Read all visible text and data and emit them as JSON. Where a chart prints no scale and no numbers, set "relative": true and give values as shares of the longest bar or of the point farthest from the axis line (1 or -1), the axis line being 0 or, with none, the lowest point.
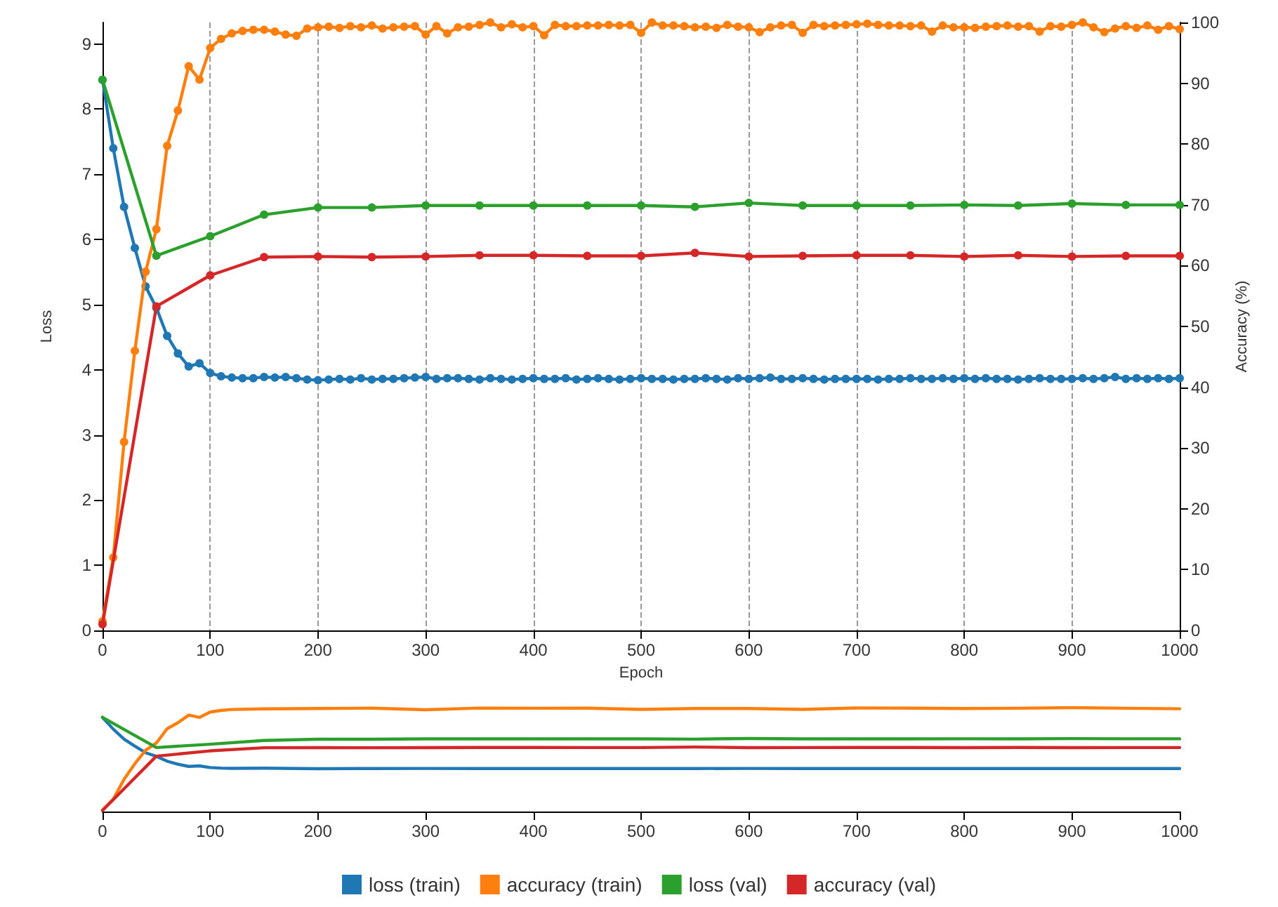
{
  "chart_data": [
    {
      "type": "line",
      "xlabel": "Epoch",
      "ylabel": "Loss",
      "y2label": "Accuracy (%)",
      "xlim": [
        0,
        1000
      ],
      "xticks": [
        0,
        100,
        200,
        300,
        400,
        500,
        600,
        700,
        800,
        900,
        1000
      ],
      "ylim": [
        0,
        9.33
      ],
      "yticks": [
        0,
        1,
        2,
        3,
        4,
        5,
        6,
        7,
        8,
        9
      ],
      "y2lim": [
        0,
        100
      ],
      "y2ticks": [
        0,
        10,
        20,
        30,
        40,
        50,
        60,
        70,
        80,
        90,
        100
      ],
      "grid": "x",
      "legend": "bottom",
      "marker": "circle",
      "line_style": "solid",
      "series": [
        {
          "name": "loss (train)",
          "color": "#1f77b4",
          "x": [
            0,
            10,
            20,
            30,
            40,
            50,
            60,
            70,
            80,
            90,
            100,
            110,
            120,
            130,
            140,
            150,
            160,
            170,
            180,
            190,
            200,
            210,
            220,
            230,
            240,
            250,
            260,
            270,
            280,
            290,
            300,
            310,
            320,
            330,
            340,
            350,
            360,
            370,
            380,
            390,
            400,
            410,
            420,
            430,
            440,
            450,
            460,
            470,
            480,
            490,
            500,
            510,
            520,
            530,
            540,
            550,
            560,
            570,
            580,
            590,
            600,
            610,
            620,
            630,
            640,
            650,
            660,
            670,
            680,
            690,
            700,
            710,
            720,
            730,
            740,
            750,
            760,
            770,
            780,
            790,
            800,
            810,
            820,
            830,
            840,
            850,
            860,
            870,
            880,
            890,
            900,
            910,
            920,
            930,
            940,
            950,
            960,
            970,
            980,
            990,
            1000
          ],
          "values": [
            8.45,
            7.4,
            6.5,
            5.87,
            5.28,
            4.95,
            4.52,
            4.25,
            4.05,
            4.1,
            3.95,
            3.9,
            3.88,
            3.87,
            3.87,
            3.89,
            3.88,
            3.89,
            3.87,
            3.85,
            3.84,
            3.85,
            3.86,
            3.85,
            3.87,
            3.85,
            3.86,
            3.86,
            3.87,
            3.88,
            3.89,
            3.86,
            3.87,
            3.87,
            3.86,
            3.85,
            3.87,
            3.86,
            3.85,
            3.86,
            3.87,
            3.86,
            3.86,
            3.87,
            3.85,
            3.86,
            3.87,
            3.86,
            3.85,
            3.86,
            3.87,
            3.86,
            3.86,
            3.85,
            3.86,
            3.86,
            3.87,
            3.86,
            3.85,
            3.87,
            3.86,
            3.87,
            3.88,
            3.86,
            3.86,
            3.87,
            3.86,
            3.85,
            3.86,
            3.86,
            3.86,
            3.86,
            3.85,
            3.86,
            3.86,
            3.87,
            3.86,
            3.86,
            3.87,
            3.86,
            3.87,
            3.86,
            3.87,
            3.86,
            3.86,
            3.85,
            3.86,
            3.87,
            3.86,
            3.86,
            3.86,
            3.87,
            3.86,
            3.87,
            3.89,
            3.86,
            3.87,
            3.86,
            3.87,
            3.86,
            3.87
          ]
        },
        {
          "name": "accuracy (train)",
          "color": "#ff7f0e",
          "axis": "y2",
          "x": [
            0,
            10,
            20,
            30,
            40,
            50,
            60,
            70,
            80,
            90,
            100,
            110,
            120,
            130,
            140,
            150,
            160,
            170,
            180,
            190,
            200,
            210,
            220,
            230,
            240,
            250,
            260,
            270,
            280,
            290,
            300,
            310,
            320,
            330,
            340,
            350,
            360,
            370,
            380,
            390,
            400,
            410,
            420,
            430,
            440,
            450,
            460,
            470,
            480,
            490,
            500,
            510,
            520,
            530,
            540,
            550,
            560,
            570,
            580,
            590,
            600,
            610,
            620,
            630,
            640,
            650,
            660,
            670,
            680,
            690,
            700,
            710,
            720,
            730,
            740,
            750,
            760,
            770,
            780,
            790,
            800,
            810,
            820,
            830,
            840,
            850,
            860,
            870,
            880,
            890,
            900,
            910,
            920,
            930,
            940,
            950,
            960,
            970,
            980,
            990,
            1000
          ],
          "values": [
            1.5,
            12,
            31,
            46,
            59,
            66,
            79.7,
            85.5,
            92.8,
            90.6,
            95.8,
            97.3,
            98.2,
            98.6,
            98.8,
            98.8,
            98.5,
            98.0,
            97.8,
            99.0,
            99.2,
            99.3,
            99.1,
            99.4,
            99.2,
            99.5,
            99.0,
            99.2,
            99.3,
            99.4,
            98.0,
            99.4,
            98.2,
            99.2,
            99.3,
            99.6,
            100,
            99.2,
            99.7,
            99.2,
            99.4,
            97.9,
            99.6,
            99.4,
            99.4,
            99.5,
            99.5,
            99.6,
            99.5,
            99.6,
            98.3,
            100,
            99.5,
            99.5,
            99.4,
            99.2,
            99.3,
            99.1,
            99.6,
            99.3,
            99.2,
            98.4,
            99.2,
            99.5,
            99.6,
            98.3,
            99.6,
            99.4,
            99.5,
            99.6,
            99.7,
            99.8,
            99.6,
            99.5,
            99.5,
            99.4,
            99.5,
            98.5,
            99.5,
            99.2,
            99.2,
            99.1,
            99.3,
            99.4,
            99.5,
            99.3,
            99.4,
            98.5,
            99.4,
            99.3,
            99.6,
            100,
            99.2,
            98.4,
            99.0,
            99.4,
            99.1,
            99.5,
            98.8,
            99.4,
            98.9
          ]
        },
        {
          "name": "loss (val)",
          "color": "#2ca02c",
          "x": [
            0,
            50,
            100,
            150,
            200,
            250,
            300,
            350,
            400,
            450,
            500,
            550,
            600,
            650,
            700,
            750,
            800,
            850,
            900,
            950,
            1000
          ],
          "values": [
            8.45,
            5.75,
            6.05,
            6.38,
            6.49,
            6.49,
            6.52,
            6.52,
            6.52,
            6.52,
            6.52,
            6.5,
            6.56,
            6.52,
            6.52,
            6.52,
            6.53,
            6.52,
            6.55,
            6.53,
            6.53
          ]
        },
        {
          "name": "accuracy (val)",
          "color": "#d62728",
          "axis": "y2",
          "x": [
            0,
            50,
            100,
            150,
            200,
            250,
            300,
            350,
            400,
            450,
            500,
            550,
            600,
            650,
            700,
            750,
            800,
            850,
            900,
            950,
            1000
          ],
          "values": [
            1,
            53.3,
            58.4,
            61.4,
            61.5,
            61.4,
            61.5,
            61.7,
            61.7,
            61.6,
            61.6,
            62.1,
            61.5,
            61.6,
            61.7,
            61.7,
            61.5,
            61.7,
            61.5,
            61.6,
            61.6
          ]
        }
      ]
    },
    {
      "type": "line",
      "relative": true,
      "xlim": [
        0,
        1000
      ],
      "xticks": [
        0,
        100,
        200,
        300,
        400,
        500,
        600,
        700,
        800,
        900,
        1000
      ],
      "tick_labels": "x",
      "marker": "none",
      "line_style": "solid",
      "series": [
        {
          "color": "#1f77b4",
          "x": [
            0,
            10,
            20,
            30,
            40,
            50,
            60,
            70,
            80,
            90,
            100,
            110,
            120,
            150,
            200,
            250,
            300,
            350,
            400,
            450,
            500,
            550,
            600,
            650,
            700,
            750,
            800,
            850,
            900,
            950,
            1000
          ],
          "values": [
            0.906,
            0.793,
            0.697,
            0.629,
            0.566,
            0.531,
            0.484,
            0.456,
            0.434,
            0.439,
            0.423,
            0.418,
            0.416,
            0.417,
            0.412,
            0.414,
            0.415,
            0.414,
            0.414,
            0.414,
            0.414,
            0.414,
            0.415,
            0.414,
            0.414,
            0.414,
            0.414,
            0.414,
            0.414,
            0.414,
            0.414
          ]
        },
        {
          "color": "#ff7f0e",
          "x": [
            0,
            10,
            20,
            30,
            40,
            50,
            60,
            70,
            80,
            90,
            100,
            110,
            120,
            150,
            200,
            250,
            300,
            350,
            400,
            450,
            500,
            550,
            600,
            650,
            700,
            750,
            800,
            850,
            900,
            950,
            1000
          ],
          "values": [
            0.015,
            0.12,
            0.31,
            0.46,
            0.59,
            0.66,
            0.797,
            0.855,
            0.928,
            0.906,
            0.958,
            0.973,
            0.982,
            0.988,
            0.992,
            0.995,
            0.98,
            0.996,
            0.994,
            0.995,
            0.983,
            0.992,
            0.992,
            0.983,
            0.997,
            0.995,
            0.992,
            0.994,
            1,
            0.994,
            0.989
          ]
        },
        {
          "color": "#2ca02c",
          "x": [
            0,
            50,
            100,
            150,
            200,
            250,
            300,
            350,
            400,
            450,
            500,
            550,
            600,
            650,
            700,
            750,
            800,
            850,
            900,
            950,
            1000
          ],
          "values": [
            0.906,
            0.616,
            0.648,
            0.684,
            0.696,
            0.696,
            0.699,
            0.699,
            0.699,
            0.699,
            0.699,
            0.697,
            0.703,
            0.699,
            0.699,
            0.699,
            0.7,
            0.699,
            0.702,
            0.7,
            0.7
          ]
        },
        {
          "color": "#d62728",
          "x": [
            0,
            50,
            100,
            150,
            200,
            250,
            300,
            350,
            400,
            450,
            500,
            550,
            600,
            650,
            700,
            750,
            800,
            850,
            900,
            950,
            1000
          ],
          "values": [
            0.01,
            0.533,
            0.584,
            0.614,
            0.615,
            0.614,
            0.615,
            0.617,
            0.617,
            0.616,
            0.616,
            0.621,
            0.615,
            0.616,
            0.617,
            0.617,
            0.615,
            0.617,
            0.615,
            0.616,
            0.616
          ]
        }
      ]
    }
  ]
}
